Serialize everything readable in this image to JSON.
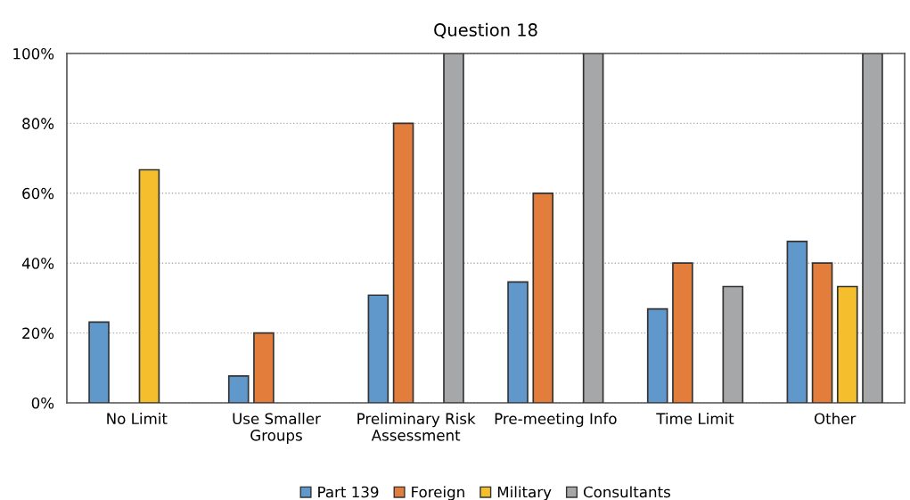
{
  "chart_data": {
    "type": "bar",
    "title": "Question 18",
    "categories": [
      "No Limit",
      "Use Smaller\nGroups",
      "Preliminary Risk\nAssessment",
      "Pre-meeting Info",
      "Time Limit",
      "Other"
    ],
    "series": [
      {
        "name": "Part 139",
        "color": "#6098cc",
        "values": [
          23.1,
          7.7,
          30.8,
          34.6,
          26.9,
          46.2
        ]
      },
      {
        "name": "Foreign",
        "color": "#e27d3c",
        "values": [
          null,
          20,
          80,
          60,
          40,
          40
        ]
      },
      {
        "name": "Military",
        "color": "#f4be2c",
        "values": [
          66.7,
          null,
          null,
          null,
          null,
          33.3
        ]
      },
      {
        "name": "Consultants",
        "color": "#a6a7a9",
        "values": [
          null,
          null,
          100,
          100,
          33.3,
          100
        ]
      }
    ],
    "ylim": [
      0,
      100
    ],
    "yticks": [
      {
        "value": 0,
        "label": "0%"
      },
      {
        "value": 20,
        "label": "20%"
      },
      {
        "value": 40,
        "label": "40%"
      },
      {
        "value": 60,
        "label": "60%"
      },
      {
        "value": 80,
        "label": "80%"
      },
      {
        "value": 100,
        "label": "100%"
      }
    ],
    "grid": "y",
    "legend": "bottom"
  }
}
